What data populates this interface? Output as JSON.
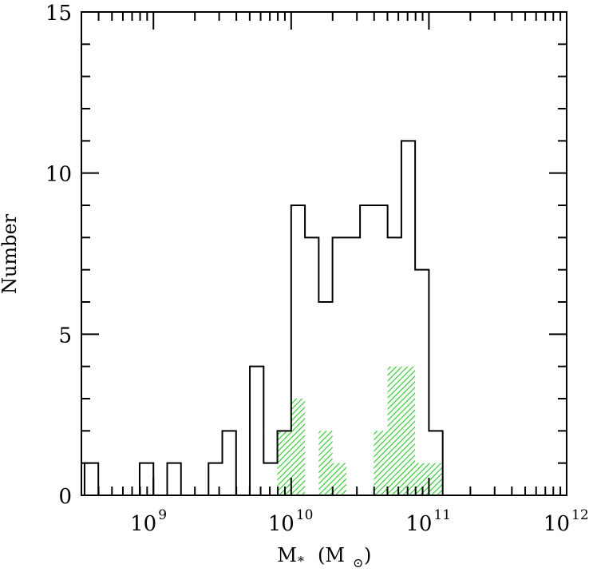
{
  "chart_data": {
    "type": "bar",
    "xlabel": {
      "main": "M",
      "sub": "*",
      "unit_open": "(M",
      "unit_sub": "⊙",
      "unit_close": ")"
    },
    "ylabel": "Number",
    "x_scale": "log",
    "xlim": [
      300000000,
      1000000000000
    ],
    "ylim": [
      0,
      15
    ],
    "y_ticks": [
      "0",
      "5",
      "10",
      "15"
    ],
    "x_ticks": [
      {
        "base": "10",
        "exp": "9",
        "value": 1000000000
      },
      {
        "base": "10",
        "exp": "10",
        "value": 10000000000
      },
      {
        "base": "10",
        "exp": "11",
        "value": 100000000000
      },
      {
        "base": "10",
        "exp": "12",
        "value": 1000000000000
      }
    ],
    "bin_log_width": 0.1,
    "series": [
      {
        "style": "outline",
        "bins": [
          {
            "log_left": 8.5,
            "count": 1
          },
          {
            "log_left": 8.6,
            "count": 0
          },
          {
            "log_left": 8.7,
            "count": 0
          },
          {
            "log_left": 8.8,
            "count": 0
          },
          {
            "log_left": 8.9,
            "count": 1
          },
          {
            "log_left": 9.0,
            "count": 0
          },
          {
            "log_left": 9.1,
            "count": 1
          },
          {
            "log_left": 9.2,
            "count": 0
          },
          {
            "log_left": 9.3,
            "count": 0
          },
          {
            "log_left": 9.4,
            "count": 1
          },
          {
            "log_left": 9.5,
            "count": 2
          },
          {
            "log_left": 9.6,
            "count": 0
          },
          {
            "log_left": 9.7,
            "count": 4
          },
          {
            "log_left": 9.8,
            "count": 1
          },
          {
            "log_left": 9.9,
            "count": 2
          },
          {
            "log_left": 10.0,
            "count": 9
          },
          {
            "log_left": 10.1,
            "count": 8
          },
          {
            "log_left": 10.2,
            "count": 6
          },
          {
            "log_left": 10.3,
            "count": 8
          },
          {
            "log_left": 10.4,
            "count": 8
          },
          {
            "log_left": 10.5,
            "count": 9
          },
          {
            "log_left": 10.6,
            "count": 9
          },
          {
            "log_left": 10.7,
            "count": 8
          },
          {
            "log_left": 10.8,
            "count": 11
          },
          {
            "log_left": 10.9,
            "count": 7
          },
          {
            "log_left": 11.0,
            "count": 2
          }
        ]
      },
      {
        "style": "hatched",
        "color": "#33cc33",
        "bins": [
          {
            "log_left": 9.9,
            "count": 2
          },
          {
            "log_left": 10.0,
            "count": 3
          },
          {
            "log_left": 10.2,
            "count": 2
          },
          {
            "log_left": 10.3,
            "count": 1
          },
          {
            "log_left": 10.6,
            "count": 2
          },
          {
            "log_left": 10.7,
            "count": 4
          },
          {
            "log_left": 10.8,
            "count": 4
          },
          {
            "log_left": 10.9,
            "count": 1
          },
          {
            "log_left": 11.0,
            "count": 1
          }
        ]
      }
    ]
  }
}
